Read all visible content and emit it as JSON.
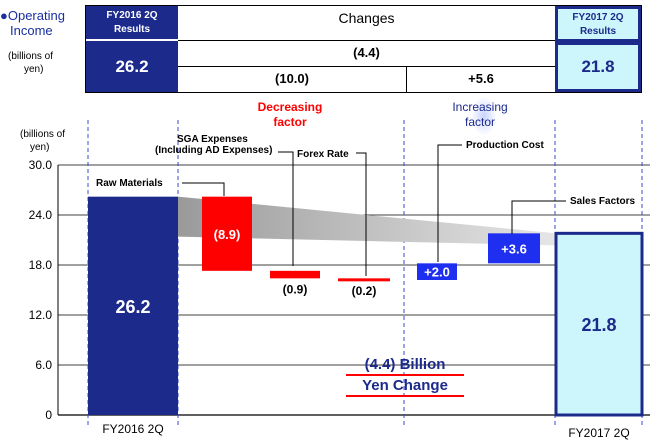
{
  "header": {
    "title_line1": "●Operating",
    "title_line2": "Income",
    "unit_line1": "(billions of",
    "unit_line2": "yen)",
    "left_box_title_line1": "FY2016 2Q",
    "left_box_title_line2": "Results",
    "left_box_value": "26.2",
    "changes_label": "Changes",
    "changes_total": "(4.4)",
    "decrease_total": "(10.0)",
    "increase_total": "+5.6",
    "right_box_title_line1": "FY2017 2Q",
    "right_box_title_line2": "Results",
    "right_box_value": "21.8"
  },
  "factor_labels": {
    "decreasing_line1": "Decreasing",
    "decreasing_line2": "factor",
    "increasing_line1": "Increasing",
    "increasing_line2": "factor"
  },
  "axis_unit_line1": "(billions of",
  "axis_unit_line2": "yen)",
  "change_note_line1": "(4.4) Billion",
  "change_note_line2": "Yen Change",
  "colors": {
    "navy": "#1c2a8c",
    "cyan": "#ccf6fb",
    "red": "#ff0000",
    "blue": "#1f2ff0",
    "grey_band": "#b8b8b8"
  },
  "chart_data": {
    "type": "bar",
    "subtype": "waterfall",
    "ylim": [
      0,
      30
    ],
    "yticks": [
      "30.0",
      "24.0",
      "18.0",
      "12.0",
      "6.0",
      "0"
    ],
    "ytick_values": [
      30,
      24,
      18,
      12,
      6,
      0
    ],
    "grid": true,
    "x_labels": [
      "FY2016 2Q",
      "FY2017 2Q"
    ],
    "bars": [
      {
        "category": "FY2016 2Q",
        "kind": "total",
        "base": 0,
        "top": 26.2,
        "label": "26.2",
        "annotation": ""
      },
      {
        "category": "Raw Materials",
        "kind": "decrease",
        "base": 17.3,
        "top": 26.2,
        "label": "(8.9)",
        "annotation": "Raw Materials"
      },
      {
        "category": "SGA Expenses",
        "kind": "decrease",
        "base": 16.4,
        "top": 17.3,
        "label": "(0.9)",
        "annotation": "SGA Expenses\n(Including AD Expenses)"
      },
      {
        "category": "Forex Rate",
        "kind": "decrease",
        "base": 16.2,
        "top": 16.4,
        "label": "(0.2)",
        "annotation": "Forex Rate"
      },
      {
        "category": "Production Cost",
        "kind": "increase",
        "base": 16.2,
        "top": 18.2,
        "label": "+2.0",
        "annotation": "Production Cost"
      },
      {
        "category": "Sales Factors",
        "kind": "increase",
        "base": 18.2,
        "top": 21.8,
        "label": "+3.6",
        "annotation": "Sales Factors"
      },
      {
        "category": "FY2017 2Q",
        "kind": "total_result",
        "base": 0,
        "top": 21.8,
        "label": "21.8",
        "annotation": ""
      }
    ]
  }
}
